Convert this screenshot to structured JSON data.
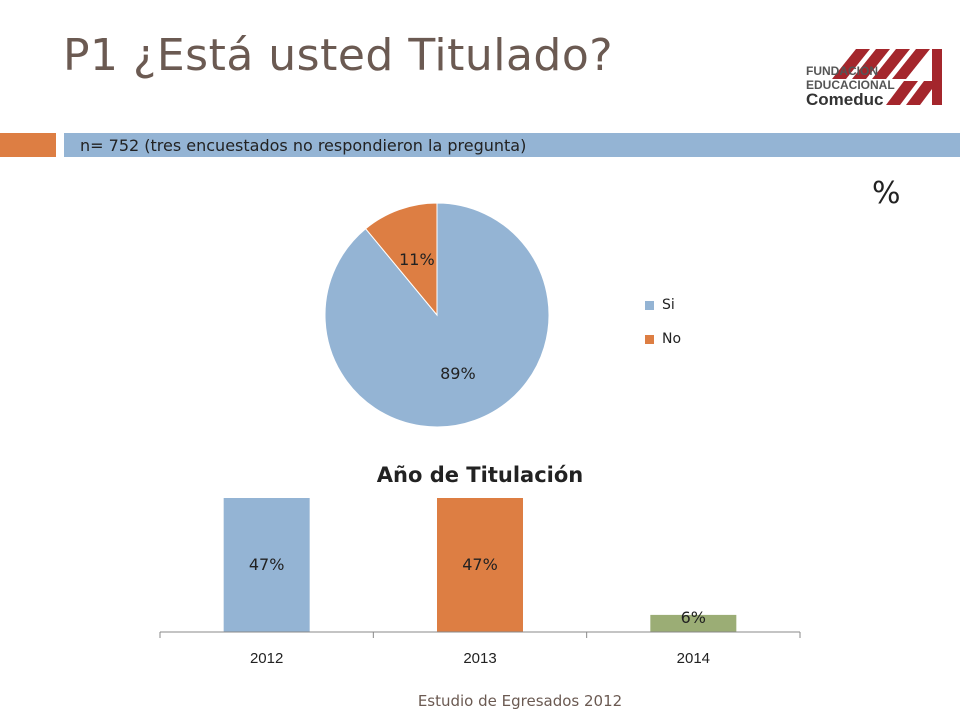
{
  "header": {
    "title": "P1 ¿Está usted Titulado?",
    "subtitle": "n= 752 (tres encuestados no respondieron la pregunta)",
    "unit_symbol": "%"
  },
  "logo": {
    "line1": "FUNDACIÓN",
    "line2": "EDUCACIONAL",
    "name": "Comeduc",
    "color": "#a4262c"
  },
  "footer": {
    "text": "Estudio de Egresados 2012"
  },
  "colors": {
    "title": "#6b5a52",
    "blue": "#94b4d4",
    "orange": "#dd7e43",
    "olive": "#9bad75"
  },
  "chart_data": [
    {
      "type": "pie",
      "title": "",
      "slices": [
        {
          "label": "Si",
          "value": 89,
          "display": "89%",
          "color": "#94b4d4"
        },
        {
          "label": "No",
          "value": 11,
          "display": "11%",
          "color": "#dd7e43"
        }
      ],
      "legend": [
        "Si",
        "No"
      ],
      "legend_position": "right"
    },
    {
      "type": "bar",
      "title": "Año de Titulación",
      "categories": [
        "2012",
        "2013",
        "2014"
      ],
      "values": [
        47,
        47,
        6
      ],
      "labels": [
        "47%",
        "47%",
        "6%"
      ],
      "colors": [
        "#94b4d4",
        "#dd7e43",
        "#9bad75"
      ],
      "ylim": [
        0,
        47
      ],
      "xlabel": "",
      "ylabel": "",
      "grid": false
    }
  ]
}
